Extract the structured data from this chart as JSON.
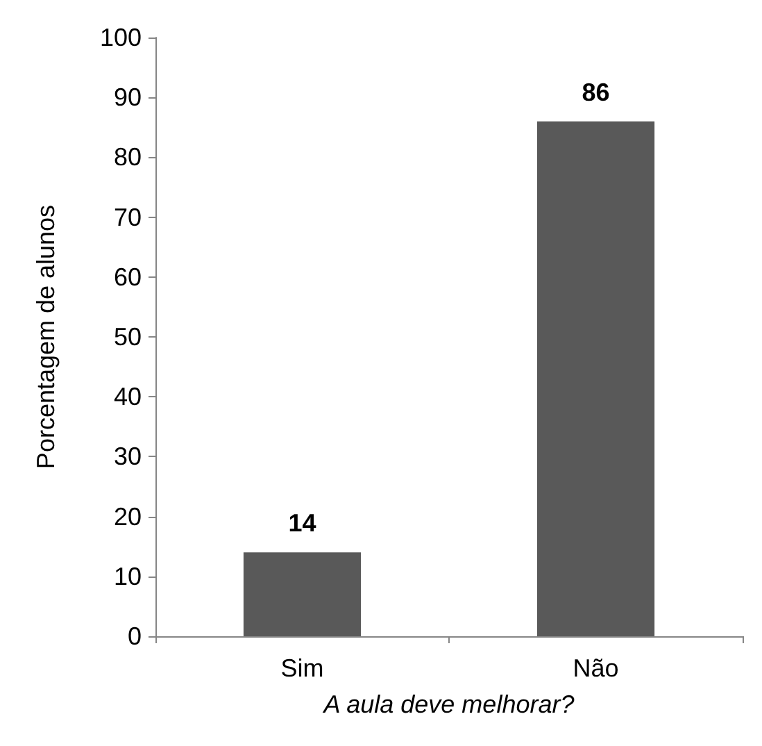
{
  "chart_data": {
    "type": "bar",
    "xlabel": "A aula deve melhorar?",
    "ylabel": "Porcentagem de alunos",
    "categories": [
      "Sim",
      "Não"
    ],
    "values": [
      14,
      86
    ],
    "color": "#595959",
    "ylim": [
      0,
      100
    ],
    "yticks": [
      0,
      10,
      20,
      30,
      40,
      50,
      60,
      70,
      80,
      90,
      100
    ],
    "grid": false,
    "data_labels": true
  }
}
